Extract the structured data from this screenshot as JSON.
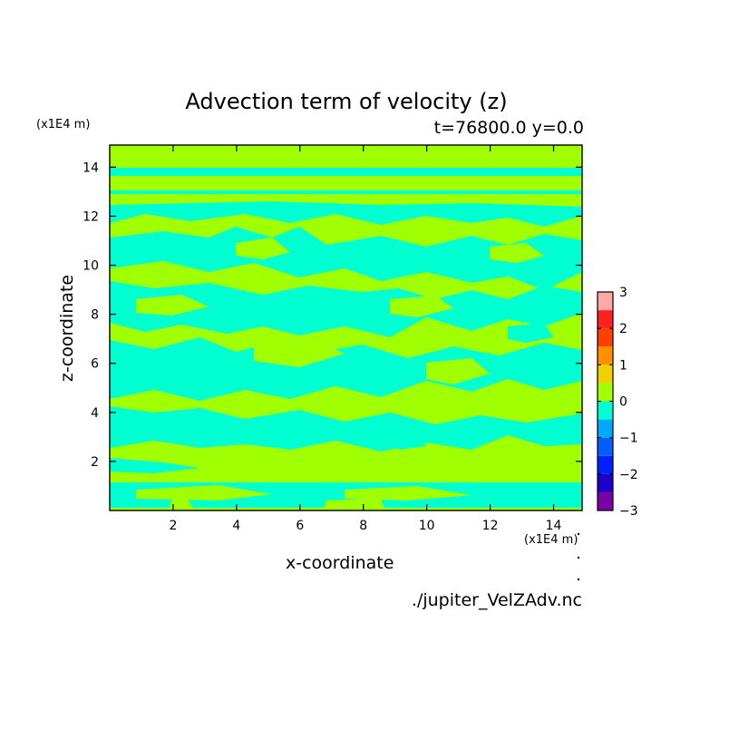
{
  "chart_data": {
    "type": "heatmap",
    "title": "Advection term of velocity (z)",
    "subtitle": "t=76800.0 y=0.0",
    "xlabel": "x-coordinate",
    "ylabel": "z-coordinate",
    "x_scale_label": "(x1E4 m)",
    "y_scale_label": "(x1E4 m)",
    "xlim": [
      0,
      14.9
    ],
    "ylim": [
      0,
      14.9
    ],
    "x_ticks": [
      "2",
      "4",
      "6",
      "8",
      "10",
      "12",
      "14"
    ],
    "y_ticks": [
      "2",
      "4",
      "6",
      "8",
      "10",
      "12",
      "14"
    ],
    "grid": false,
    "colorbar": {
      "ticks": [
        "3",
        "2",
        "1",
        "0",
        "−1",
        "−2",
        "−3"
      ],
      "levels": [
        {
          "range": [
            -3.0,
            -2.5
          ],
          "color": "#7a00a8"
        },
        {
          "range": [
            -2.5,
            -2.0
          ],
          "color": "#1a00c8"
        },
        {
          "range": [
            -2.0,
            -1.5
          ],
          "color": "#0020ff"
        },
        {
          "range": [
            -1.5,
            -1.0
          ],
          "color": "#0060ff"
        },
        {
          "range": [
            -1.0,
            -0.5
          ],
          "color": "#00a8ff"
        },
        {
          "range": [
            -0.5,
            0.0
          ],
          "color": "#00ffd0"
        },
        {
          "range": [
            0.0,
            0.5
          ],
          "color": "#a0ff00"
        },
        {
          "range": [
            0.5,
            1.0
          ],
          "color": "#f0d000"
        },
        {
          "range": [
            1.0,
            1.5
          ],
          "color": "#ff9000"
        },
        {
          "range": [
            1.5,
            2.0
          ],
          "color": "#ff4000"
        },
        {
          "range": [
            2.0,
            2.5
          ],
          "color": "#ff2020"
        },
        {
          "range": [
            2.5,
            3.0
          ],
          "color": "#ffa8a8"
        }
      ]
    },
    "field_colors": {
      "positive": "#a0ff00",
      "negative": "#00ffd0"
    },
    "source_file": "./jupiter_VelZAdv.nc"
  }
}
